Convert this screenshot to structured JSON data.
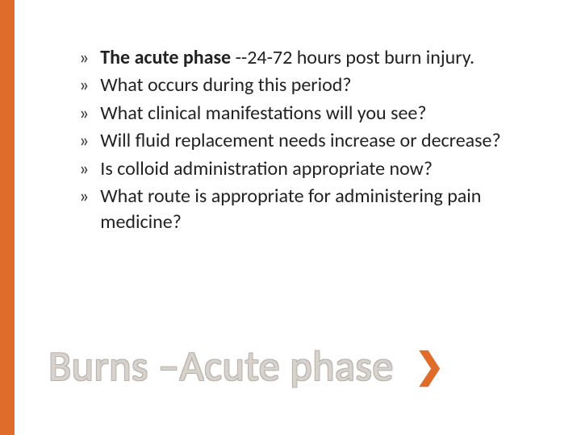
{
  "layout": {
    "sidebar_color": "#e06c2c",
    "background_color": "#ffffff",
    "bullet_glyph": "»",
    "bullet_color": "#333333",
    "body_fontsize": 24,
    "body_color": "#222222",
    "title_fontsize": 52,
    "title_color": "#d8d2cc",
    "title_outline_color": "#b8b2ac",
    "chevron_color": "#e06c2c",
    "chevron_glyph": "❯"
  },
  "bullets": [
    {
      "bold_prefix": "The acute phase ",
      "rest": "--24-72 hours post burn injury."
    },
    {
      "bold_prefix": "",
      "rest": "What occurs during this period?"
    },
    {
      "bold_prefix": "",
      "rest": "What clinical manifestations will you see?"
    },
    {
      "bold_prefix": "",
      "rest": "Will fluid replacement needs increase or decrease?"
    },
    {
      "bold_prefix": "",
      "rest": "Is colloid administration appropriate now?"
    },
    {
      "bold_prefix": "",
      "rest": "What route is appropriate for administering pain medicine?"
    }
  ],
  "title": "Burns –Acute phase"
}
